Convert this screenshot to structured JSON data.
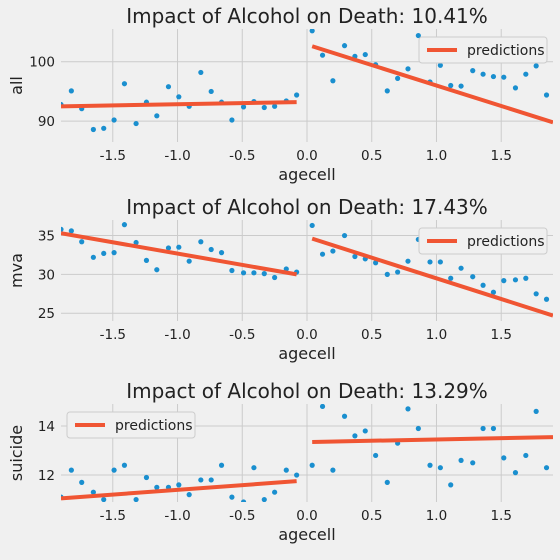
{
  "figure": {
    "background": "#f0f0f0",
    "grid_color": "#cbcbcb",
    "point_color": "#1a8fcf",
    "line_color": "#f05533"
  },
  "chart_data": [
    {
      "type": "scatter",
      "title": "Impact of Alcohol on Death: 10.41%",
      "xlabel": "agecell",
      "ylabel": "all",
      "xlim": [
        -1.9,
        1.9
      ],
      "ylim": [
        86.5,
        105.5
      ],
      "xticks": [
        "-1.5",
        "-1.0",
        "-0.5",
        "0.0",
        "0.5",
        "1.0",
        "1.5"
      ],
      "xtick_values": [
        -1.5,
        -1.0,
        -0.5,
        0.0,
        0.5,
        1.0,
        1.5
      ],
      "yticks": [
        "90",
        "100"
      ],
      "ytick_values": [
        90,
        100
      ],
      "grid": true,
      "legend": {
        "position": "top-right",
        "label": "predictions"
      },
      "series": [
        {
          "kind": "points",
          "x": [
            -1.9,
            -1.82,
            -1.74,
            -1.65,
            -1.57,
            -1.49,
            -1.41,
            -1.32,
            -1.24,
            -1.16,
            -1.07,
            -0.99,
            -0.91,
            -0.82,
            -0.74,
            -0.66,
            -0.58,
            -0.49,
            -0.41,
            -0.33,
            -0.25,
            -0.16,
            -0.08,
            0.04,
            0.12,
            0.2,
            0.29,
            0.37,
            0.45,
            0.53,
            0.62,
            0.7,
            0.78,
            0.86,
            0.95,
            1.03,
            1.11,
            1.19,
            1.28,
            1.36,
            1.44,
            1.52,
            1.61,
            1.69,
            1.77,
            1.85,
            1.93
          ],
          "y": [
            92.8,
            95.1,
            92.1,
            88.6,
            88.8,
            90.2,
            96.3,
            89.6,
            93.2,
            90.9,
            95.8,
            94.1,
            92.5,
            98.2,
            95.0,
            93.2,
            90.2,
            92.4,
            93.3,
            92.3,
            92.5,
            93.4,
            94.4,
            105.2,
            101.1,
            96.8,
            102.7,
            100.9,
            101.2,
            99.5,
            95.1,
            97.2,
            98.8,
            104.4,
            96.6,
            99.4,
            96.0,
            95.9,
            98.5,
            97.9,
            97.5,
            97.4,
            95.6,
            97.9,
            99.3,
            94.4,
            97.5
          ]
        },
        {
          "kind": "line",
          "name": "predictions",
          "x": [
            -1.9,
            -0.08
          ],
          "y": [
            92.5,
            93.2
          ]
        },
        {
          "kind": "line",
          "name": "predictions",
          "x": [
            0.04,
            1.9
          ],
          "y": [
            102.6,
            89.8
          ]
        }
      ]
    },
    {
      "type": "scatter",
      "title": "Impact of Alcohol on Death: 17.43%",
      "xlabel": "agecell",
      "ylabel": "mva",
      "xlim": [
        -1.9,
        1.9
      ],
      "ylim": [
        24.0,
        37.0
      ],
      "xticks": [
        "-1.5",
        "-1.0",
        "-0.5",
        "0.0",
        "0.5",
        "1.0",
        "1.5"
      ],
      "xtick_values": [
        -1.5,
        -1.0,
        -0.5,
        0.0,
        0.5,
        1.0,
        1.5
      ],
      "yticks": [
        "25",
        "30",
        "35"
      ],
      "ytick_values": [
        25,
        30,
        35
      ],
      "grid": true,
      "legend": {
        "position": "top-right",
        "label": "predictions"
      },
      "series": [
        {
          "kind": "points",
          "x": [
            -1.9,
            -1.82,
            -1.74,
            -1.65,
            -1.57,
            -1.49,
            -1.41,
            -1.32,
            -1.24,
            -1.16,
            -1.07,
            -0.99,
            -0.91,
            -0.82,
            -0.74,
            -0.66,
            -0.58,
            -0.49,
            -0.41,
            -0.33,
            -0.25,
            -0.16,
            -0.08,
            0.04,
            0.12,
            0.2,
            0.29,
            0.37,
            0.45,
            0.53,
            0.62,
            0.7,
            0.78,
            0.86,
            0.95,
            1.03,
            1.11,
            1.19,
            1.28,
            1.36,
            1.44,
            1.52,
            1.61,
            1.69,
            1.77,
            1.85,
            1.93
          ],
          "y": [
            35.8,
            35.6,
            34.2,
            32.2,
            32.7,
            32.8,
            36.4,
            34.1,
            31.8,
            30.6,
            33.4,
            33.5,
            31.7,
            34.2,
            33.2,
            32.8,
            30.5,
            30.2,
            30.2,
            30.1,
            29.6,
            30.7,
            30.3,
            36.3,
            32.6,
            33.0,
            35.0,
            32.3,
            32.0,
            31.5,
            30.0,
            30.3,
            31.7,
            34.5,
            31.6,
            31.6,
            29.5,
            30.8,
            29.7,
            28.6,
            27.7,
            29.2,
            29.3,
            29.5,
            27.5,
            26.8,
            27.3
          ]
        },
        {
          "kind": "line",
          "name": "predictions",
          "x": [
            -1.9,
            -0.08
          ],
          "y": [
            35.3,
            30.0
          ]
        },
        {
          "kind": "line",
          "name": "predictions",
          "x": [
            0.04,
            1.9
          ],
          "y": [
            34.6,
            24.7
          ]
        }
      ]
    },
    {
      "type": "scatter",
      "title": "Impact of Alcohol on Death: 13.29%",
      "xlabel": "agecell",
      "ylabel": "suicide",
      "xlim": [
        -1.9,
        1.9
      ],
      "ylim": [
        10.9,
        14.9
      ],
      "xticks": [
        "-1.5",
        "-1.0",
        "-0.5",
        "0.0",
        "0.5",
        "1.0",
        "1.5"
      ],
      "xtick_values": [
        -1.5,
        -1.0,
        -0.5,
        0.0,
        0.5,
        1.0,
        1.5
      ],
      "yticks": [
        "12",
        "14"
      ],
      "ytick_values": [
        12,
        14
      ],
      "grid": true,
      "legend": {
        "position": "top-left",
        "label": "predictions"
      },
      "series": [
        {
          "kind": "points",
          "x": [
            -1.9,
            -1.82,
            -1.74,
            -1.65,
            -1.57,
            -1.49,
            -1.41,
            -1.32,
            -1.24,
            -1.16,
            -1.07,
            -0.99,
            -0.91,
            -0.82,
            -0.74,
            -0.66,
            -0.58,
            -0.49,
            -0.41,
            -0.33,
            -0.25,
            -0.16,
            -0.08,
            0.04,
            0.12,
            0.2,
            0.29,
            0.37,
            0.45,
            0.53,
            0.62,
            0.7,
            0.78,
            0.86,
            0.95,
            1.03,
            1.11,
            1.19,
            1.28,
            1.36,
            1.44,
            1.52,
            1.61,
            1.69,
            1.77,
            1.85,
            1.93
          ],
          "y": [
            11.1,
            12.2,
            11.7,
            11.3,
            11.0,
            12.2,
            12.4,
            11.0,
            11.9,
            11.5,
            11.5,
            11.6,
            11.2,
            11.8,
            11.8,
            12.4,
            11.1,
            10.9,
            12.3,
            11.0,
            11.3,
            12.2,
            12.0,
            12.4,
            14.8,
            12.2,
            14.4,
            13.6,
            13.8,
            12.8,
            11.7,
            13.3,
            14.7,
            13.9,
            12.4,
            12.3,
            11.6,
            12.6,
            12.5,
            13.9,
            13.9,
            12.7,
            12.1,
            12.8,
            14.6,
            12.3,
            11.9
          ]
        },
        {
          "kind": "line",
          "name": "predictions",
          "x": [
            -1.9,
            -0.08
          ],
          "y": [
            11.05,
            11.75
          ]
        },
        {
          "kind": "line",
          "name": "predictions",
          "x": [
            0.04,
            1.9
          ],
          "y": [
            13.35,
            13.55
          ]
        }
      ]
    }
  ]
}
